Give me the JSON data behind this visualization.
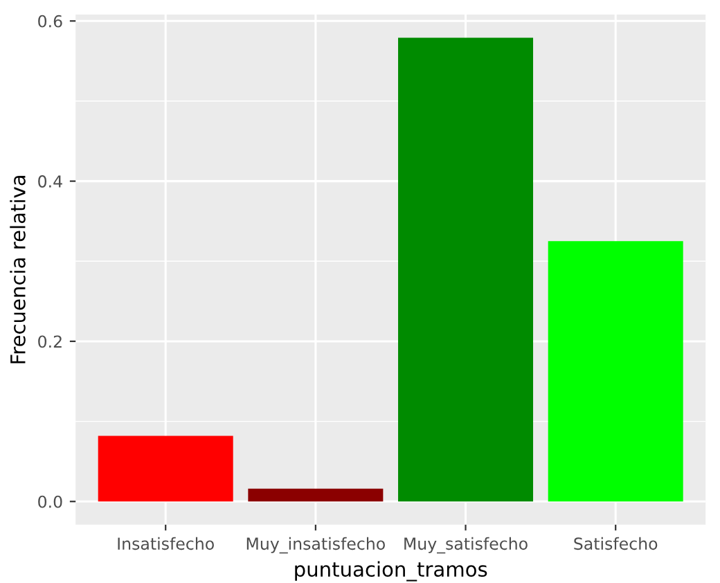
{
  "chart_data": {
    "type": "bar",
    "xlabel": "puntuacion_tramos",
    "ylabel": "Frecuencia relativa",
    "categories": [
      "Insatisfecho",
      "Muy_insatisfecho",
      "Muy_satisfecho",
      "Satisfecho"
    ],
    "values": [
      0.082,
      0.016,
      0.579,
      0.325
    ],
    "colors": [
      "#ff0000",
      "#8b0000",
      "#008b00",
      "#00ff00"
    ],
    "ylim": [
      -0.029,
      0.608
    ],
    "yticks": [
      {
        "value": 0,
        "label": "0.0"
      },
      {
        "value": 0.2,
        "label": "0.2"
      },
      {
        "value": 0.4,
        "label": "0.4"
      },
      {
        "value": 0.6,
        "label": "0.6"
      }
    ],
    "grid": true
  }
}
